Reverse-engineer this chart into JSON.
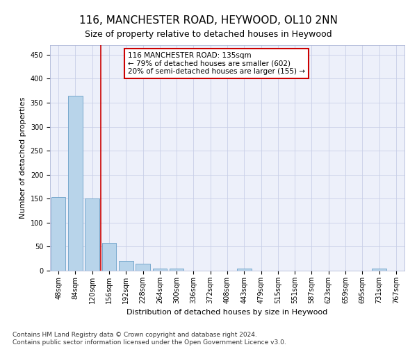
{
  "title": "116, MANCHESTER ROAD, HEYWOOD, OL10 2NN",
  "subtitle": "Size of property relative to detached houses in Heywood",
  "xlabel": "Distribution of detached houses by size in Heywood",
  "ylabel": "Number of detached properties",
  "categories": [
    "48sqm",
    "84sqm",
    "120sqm",
    "156sqm",
    "192sqm",
    "228sqm",
    "264sqm",
    "300sqm",
    "336sqm",
    "372sqm",
    "408sqm",
    "443sqm",
    "479sqm",
    "515sqm",
    "551sqm",
    "587sqm",
    "623sqm",
    "659sqm",
    "695sqm",
    "731sqm",
    "767sqm"
  ],
  "values": [
    153,
    365,
    151,
    58,
    20,
    15,
    5,
    4,
    0,
    0,
    0,
    5,
    0,
    0,
    0,
    0,
    0,
    0,
    0,
    4,
    0
  ],
  "bar_color": "#b8d4ea",
  "bar_edge_color": "#6aa0c8",
  "vline_color": "#cc0000",
  "annotation_text": "116 MANCHESTER ROAD: 135sqm\n← 79% of detached houses are smaller (602)\n20% of semi-detached houses are larger (155) →",
  "annotation_box_color": "#ffffff",
  "annotation_box_edge_color": "#cc0000",
  "ylim": [
    0,
    470
  ],
  "yticks": [
    0,
    50,
    100,
    150,
    200,
    250,
    300,
    350,
    400,
    450
  ],
  "footnote": "Contains HM Land Registry data © Crown copyright and database right 2024.\nContains public sector information licensed under the Open Government Licence v3.0.",
  "bg_color": "#edf0fa",
  "grid_color": "#c8cfe8",
  "title_fontsize": 11,
  "subtitle_fontsize": 9,
  "axis_label_fontsize": 8,
  "tick_fontsize": 7,
  "annotation_fontsize": 7.5,
  "footnote_fontsize": 6.5
}
